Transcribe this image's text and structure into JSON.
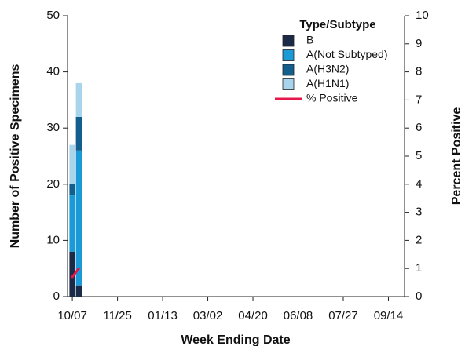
{
  "chart_data": {
    "type": "bar",
    "stacked": true,
    "x_label": "Week Ending Date",
    "y_label": "Number of Positive Specimens",
    "y2_label": "Percent Positive",
    "legend_title": "Type/Subtype",
    "legend": "upper right",
    "categories": [
      "10/07",
      null,
      null,
      null,
      null,
      null,
      null,
      "11/25",
      null,
      null,
      null,
      null,
      null,
      null,
      "01/13",
      null,
      null,
      null,
      null,
      null,
      null,
      "03/02",
      null,
      null,
      null,
      null,
      null,
      null,
      "04/20",
      null,
      null,
      null,
      null,
      null,
      null,
      "06/08",
      null,
      null,
      null,
      null,
      null,
      null,
      "07/27",
      null,
      null,
      null,
      null,
      null,
      null,
      "09/14",
      null,
      null
    ],
    "series": [
      {
        "name": "B",
        "color": "#1b2a47",
        "values": [
          8,
          2,
          null,
          null,
          null,
          null,
          null,
          null,
          null,
          null,
          null,
          null,
          null,
          null,
          null,
          null,
          null,
          null,
          null,
          null,
          null,
          null,
          null,
          null,
          null,
          null,
          null,
          null,
          null,
          null,
          null,
          null,
          null,
          null,
          null,
          null,
          null,
          null,
          null,
          null,
          null,
          null,
          null,
          null,
          null,
          null,
          null,
          null,
          null,
          null,
          null,
          null
        ]
      },
      {
        "name": "A(Not Subtyped)",
        "color": "#1a9bd7",
        "values": [
          10,
          24,
          null,
          null,
          null,
          null,
          null,
          null,
          null,
          null,
          null,
          null,
          null,
          null,
          null,
          null,
          null,
          null,
          null,
          null,
          null,
          null,
          null,
          null,
          null,
          null,
          null,
          null,
          null,
          null,
          null,
          null,
          null,
          null,
          null,
          null,
          null,
          null,
          null,
          null,
          null,
          null,
          null,
          null,
          null,
          null,
          null,
          null,
          null,
          null,
          null,
          null
        ]
      },
      {
        "name": "A(H3N2)",
        "color": "#125e8c",
        "values": [
          2,
          6,
          null,
          null,
          null,
          null,
          null,
          null,
          null,
          null,
          null,
          null,
          null,
          null,
          null,
          null,
          null,
          null,
          null,
          null,
          null,
          null,
          null,
          null,
          null,
          null,
          null,
          null,
          null,
          null,
          null,
          null,
          null,
          null,
          null,
          null,
          null,
          null,
          null,
          null,
          null,
          null,
          null,
          null,
          null,
          null,
          null,
          null,
          null,
          null,
          null,
          null
        ]
      },
      {
        "name": "A(H1N1)",
        "color": "#a8d5ec",
        "values": [
          7,
          6,
          null,
          null,
          null,
          null,
          null,
          null,
          null,
          null,
          null,
          null,
          null,
          null,
          null,
          null,
          null,
          null,
          null,
          null,
          null,
          null,
          null,
          null,
          null,
          null,
          null,
          null,
          null,
          null,
          null,
          null,
          null,
          null,
          null,
          null,
          null,
          null,
          null,
          null,
          null,
          null,
          null,
          null,
          null,
          null,
          null,
          null,
          null,
          null,
          null,
          null
        ]
      },
      {
        "name": "% Positive",
        "type": "line",
        "axis": "y2",
        "color": "#e8174a",
        "values": [
          0.7,
          1.0,
          null,
          null,
          null,
          null,
          null,
          null,
          null,
          null,
          null,
          null,
          null,
          null,
          null,
          null,
          null,
          null,
          null,
          null,
          null,
          null,
          null,
          null,
          null,
          null,
          null,
          null,
          null,
          null,
          null,
          null,
          null,
          null,
          null,
          null,
          null,
          null,
          null,
          null,
          null,
          null,
          null,
          null,
          null,
          null,
          null,
          null,
          null,
          null,
          null,
          null
        ]
      }
    ],
    "ylim": [
      0,
      50
    ],
    "yticks": [
      0,
      10,
      20,
      30,
      40,
      50
    ],
    "y2lim": [
      0,
      10
    ],
    "y2ticks": [
      0,
      1,
      2,
      3,
      4,
      5,
      6,
      7,
      8,
      9,
      10
    ]
  }
}
